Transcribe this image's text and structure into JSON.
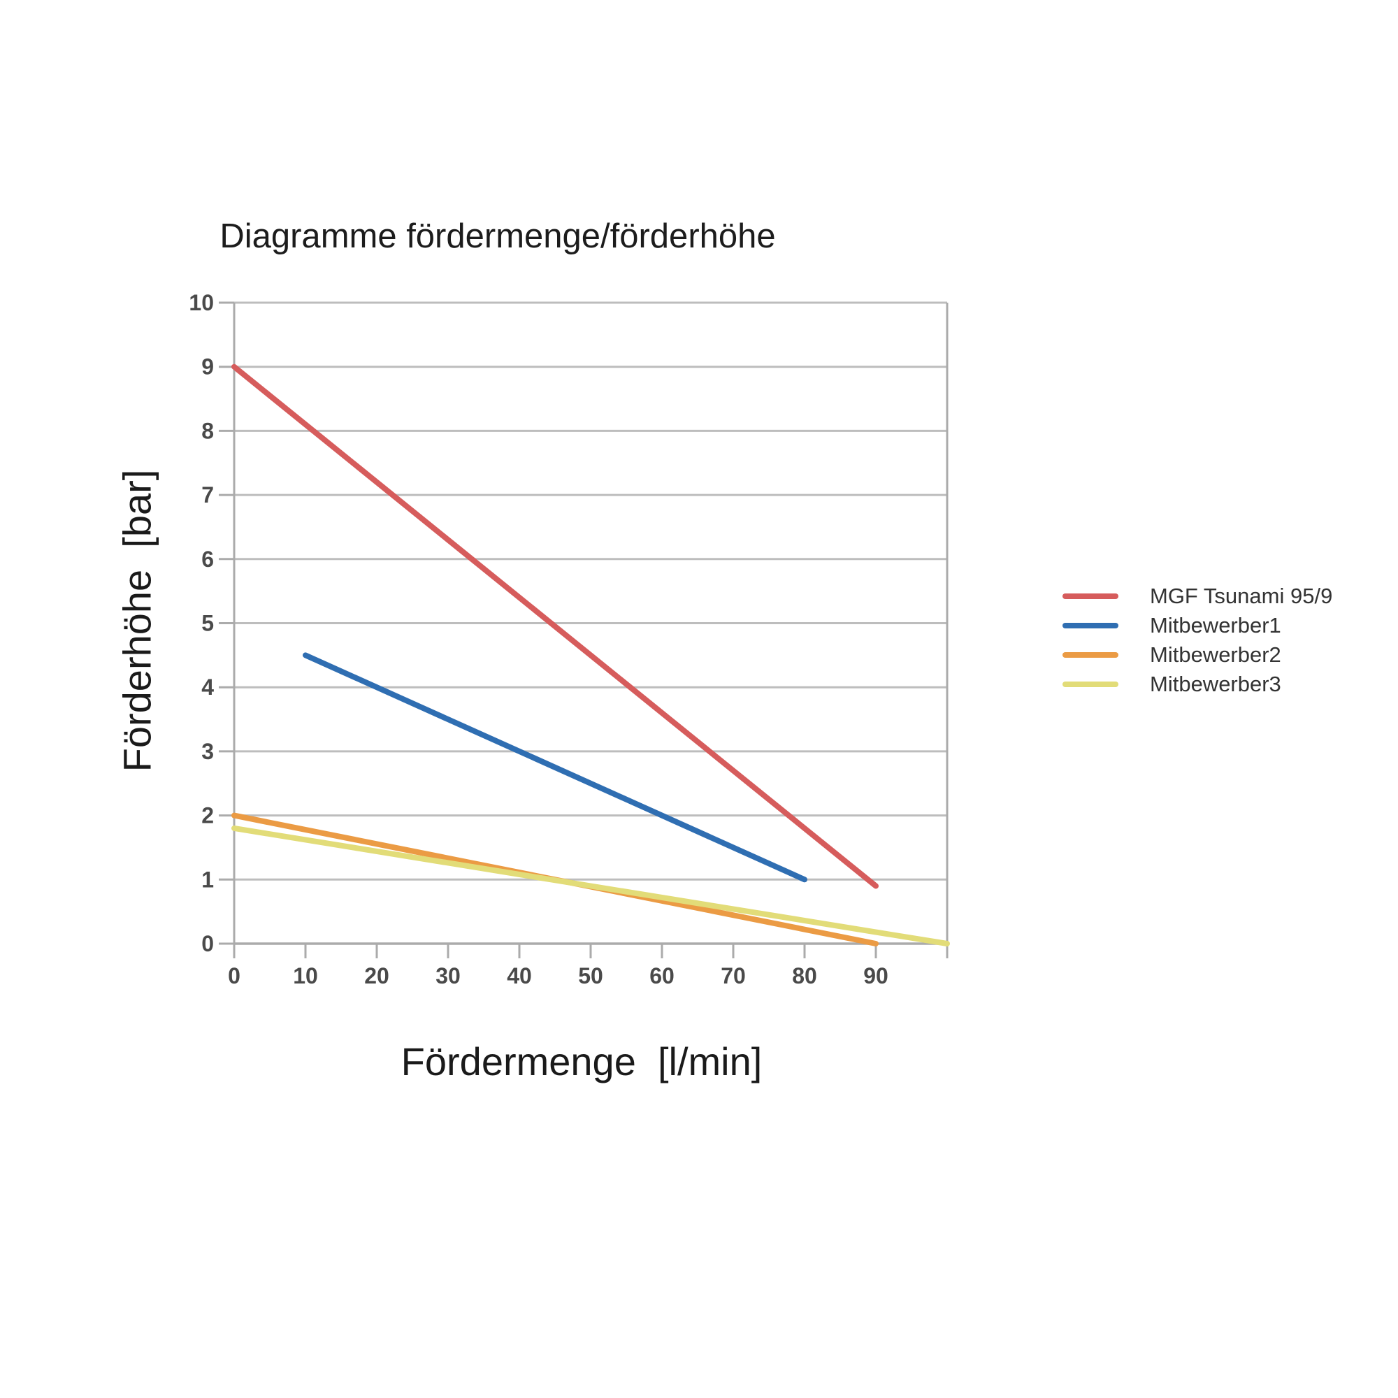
{
  "chart_data": {
    "type": "line",
    "title": "Diagramme fördermenge/förderhöhe",
    "xlabel": "Fördermenge  [l/min]",
    "ylabel": "Förderhöhe  [bar]",
    "xlim": [
      0,
      100
    ],
    "ylim": [
      0,
      10
    ],
    "x_ticks": [
      0,
      10,
      20,
      30,
      40,
      50,
      60,
      70,
      80,
      90
    ],
    "y_ticks": [
      0,
      1,
      2,
      3,
      4,
      5,
      6,
      7,
      8,
      9,
      10
    ],
    "grid": "horizontal-only",
    "legend_position": "right",
    "gridline_color": "#bdbdbd",
    "axis_color": "#ababab",
    "tick_label_color": "#4a4a4a",
    "series": [
      {
        "name": "MGF Tsunami 95/9",
        "color": "#d65c5c",
        "points": [
          [
            0,
            9
          ],
          [
            90,
            0.9
          ]
        ]
      },
      {
        "name": "Mitbewerber1",
        "color": "#2f6eb2",
        "points": [
          [
            10,
            4.5
          ],
          [
            80,
            1
          ]
        ]
      },
      {
        "name": "Mitbewerber2",
        "color": "#eb9b44",
        "points": [
          [
            0,
            2
          ],
          [
            90,
            0
          ]
        ]
      },
      {
        "name": "Mitbewerber3",
        "color": "#e2dc78",
        "points": [
          [
            0,
            1.8
          ],
          [
            100,
            0
          ]
        ]
      }
    ]
  }
}
